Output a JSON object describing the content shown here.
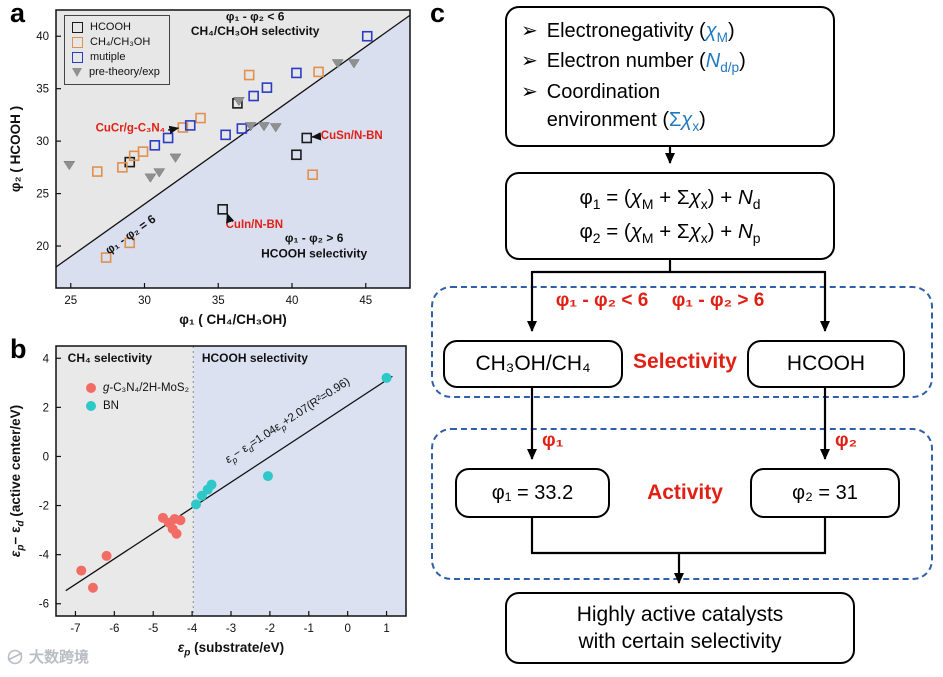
{
  "figure": {
    "panel_a": "a",
    "panel_b": "b",
    "panel_c": "c"
  },
  "watermark": {
    "text": "大数跨境"
  },
  "chart_data": [
    {
      "id": "a",
      "type": "scatter",
      "xlabel_parts": [
        [
          "t",
          "φ₁ ( CH₄/CH₃OH)"
        ]
      ],
      "ylabel_parts": [
        [
          "t",
          "φ₂ ( HCOOH )"
        ]
      ],
      "xlim": [
        24,
        48
      ],
      "ylim": [
        16,
        42.5
      ],
      "xticks": [
        25,
        30,
        35,
        40,
        45
      ],
      "yticks": [
        20,
        25,
        30,
        35,
        40
      ],
      "line": {
        "slope": 1,
        "intercept": -6,
        "x1": 24,
        "x2": 48
      },
      "regions": {
        "above": "#e7e7e7",
        "below": "#dadff0"
      },
      "series": [
        {
          "name": "HCOOH",
          "marker": "square",
          "color": "#1a1a1a",
          "points": [
            [
              29.0,
              28.0
            ],
            [
              35.3,
              23.5
            ],
            [
              36.3,
              33.6
            ],
            [
              40.3,
              28.7
            ],
            [
              41.0,
              30.3
            ]
          ]
        },
        {
          "name": "CH₄/CH₃OH",
          "marker": "square",
          "color": "#e0914f",
          "points": [
            [
              26.8,
              27.1
            ],
            [
              28.5,
              27.5
            ],
            [
              29.3,
              28.6
            ],
            [
              29.9,
              29.0
            ],
            [
              32.6,
              31.3
            ],
            [
              33.8,
              32.2
            ],
            [
              37.1,
              36.3
            ],
            [
              41.8,
              36.6
            ],
            [
              27.4,
              18.9
            ],
            [
              29.0,
              20.3
            ],
            [
              41.4,
              26.8
            ]
          ]
        },
        {
          "name": "mutiple",
          "marker": "square",
          "color": "#2b3bc8",
          "points": [
            [
              30.7,
              29.6
            ],
            [
              31.6,
              30.3
            ],
            [
              33.1,
              31.5
            ],
            [
              35.5,
              30.6
            ],
            [
              36.6,
              31.2
            ],
            [
              37.4,
              34.3
            ],
            [
              38.3,
              35.1
            ],
            [
              40.3,
              36.5
            ],
            [
              45.1,
              40.0
            ]
          ]
        },
        {
          "name": "pre-theory/exp",
          "marker": "triangle-down",
          "color": "#909090",
          "points": [
            [
              24.9,
              27.7
            ],
            [
              30.4,
              26.5
            ],
            [
              31.0,
              27.0
            ],
            [
              32.1,
              28.4
            ],
            [
              36.4,
              33.8
            ],
            [
              37.2,
              31.4
            ],
            [
              38.1,
              31.4
            ],
            [
              38.9,
              31.3
            ],
            [
              43.1,
              37.4
            ],
            [
              44.2,
              37.4
            ]
          ]
        }
      ],
      "annotations": [
        {
          "text": "φ₁ - φ₂ < 6",
          "x": 37.5,
          "y": 41.5,
          "anchor": "middle",
          "size": 12,
          "bold": true
        },
        {
          "text": "CH₄/CH₃OH selectivity",
          "x": 37.5,
          "y": 40.1,
          "anchor": "middle",
          "size": 12,
          "bold": true
        },
        {
          "text": "φ₁ - φ₂ > 6",
          "x": 41.5,
          "y": 20.4,
          "anchor": "middle",
          "size": 12,
          "bold": true
        },
        {
          "text": "HCOOH selectivity",
          "x": 41.5,
          "y": 18.9,
          "anchor": "middle",
          "size": 12,
          "bold": true
        },
        {
          "text": "φ₁ - φ₂ = 6",
          "x": 29.2,
          "y": 20.8,
          "anchor": "middle",
          "size": 12,
          "bold": true,
          "rotation": "line"
        },
        {
          "text": "CuCr/g-C₃N₄",
          "x": 31.4,
          "y": 30.9,
          "anchor": "end",
          "size": 11.5,
          "bold": true,
          "color": "#e02015"
        },
        {
          "text": "CuSn/N-BN",
          "x": 41.95,
          "y": 30.2,
          "anchor": "start",
          "size": 11.5,
          "bold": true,
          "color": "#e02015"
        },
        {
          "text": "CuIn/N-BN",
          "x": 35.5,
          "y": 21.7,
          "anchor": "start",
          "size": 11.5,
          "bold": true,
          "color": "#e02015"
        }
      ],
      "arrows": [
        {
          "x1": 31.6,
          "y1": 31.05,
          "x2": 32.3,
          "y2": 31.25
        },
        {
          "x1": 41.85,
          "y1": 30.45,
          "x2": 41.35,
          "y2": 30.4
        },
        {
          "x1": 35.8,
          "y1": 22.3,
          "x2": 35.6,
          "y2": 23.1
        }
      ]
    },
    {
      "id": "b",
      "type": "scatter",
      "xlabel_parts": [
        [
          "i",
          "ε"
        ],
        [
          "si",
          "p"
        ],
        [
          "t",
          " (substrate/eV)"
        ]
      ],
      "ylabel_parts": [
        [
          "i",
          "ε"
        ],
        [
          "si",
          "p"
        ],
        [
          "t",
          "− ε"
        ],
        [
          "si",
          "d"
        ],
        [
          "t",
          " (active center/eV)"
        ]
      ],
      "xlim": [
        -7.5,
        1.5
      ],
      "ylim": [
        -6.5,
        4.5
      ],
      "xticks": [
        -7,
        -6,
        -5,
        -4,
        -3,
        -2,
        -1,
        0,
        1
      ],
      "yticks": [
        -6,
        -4,
        -2,
        0,
        2,
        4
      ],
      "line": {
        "slope": 1.04,
        "intercept": 2.07,
        "x1": -7.25,
        "x2": 1.15
      },
      "divider_x": -3.97,
      "regions": {
        "left": "#e9e9e9",
        "right": "#dbe1f1"
      },
      "series": [
        {
          "name": "g-C₃N₄/2H-MoS₂",
          "legend_parts": [
            [
              "i",
              "g"
            ],
            [
              "t",
              "-C₃N₄/2H-MoS₂"
            ]
          ],
          "marker": "circle",
          "color": "#f26c65",
          "points": [
            [
              -6.85,
              -4.65
            ],
            [
              -6.55,
              -5.35
            ],
            [
              -6.2,
              -4.05
            ],
            [
              -4.75,
              -2.5
            ],
            [
              -4.6,
              -2.7
            ],
            [
              -4.5,
              -2.95
            ],
            [
              -4.45,
              -2.55
            ],
            [
              -4.4,
              -3.15
            ],
            [
              -4.3,
              -2.6
            ]
          ]
        },
        {
          "name": "BN",
          "legend_parts": [
            [
              "t",
              "BN"
            ]
          ],
          "marker": "circle",
          "color": "#2ec8c8",
          "points": [
            [
              -3.9,
              -1.95
            ],
            [
              -3.75,
              -1.6
            ],
            [
              -3.6,
              -1.35
            ],
            [
              -3.5,
              -1.15
            ],
            [
              -2.05,
              -0.8
            ],
            [
              1.0,
              3.2
            ]
          ]
        }
      ],
      "annotations": [
        {
          "text": "CH₄ selectivity",
          "x": -7.2,
          "y": 3.85,
          "anchor": "start",
          "size": 12,
          "bold": true
        },
        {
          "text": "HCOOH selectivity",
          "x": -3.75,
          "y": 3.85,
          "anchor": "start",
          "size": 12,
          "bold": true
        },
        {
          "parts": [
            [
              "i",
              "ε"
            ],
            [
              "si",
              "p"
            ],
            [
              "t",
              "− ε"
            ],
            [
              "si",
              "d"
            ],
            [
              "t",
              "=1.04ε"
            ],
            [
              "si",
              "p"
            ],
            [
              "t",
              "+2.07(R²=0.96)"
            ]
          ],
          "x": -1.5,
          "y": 1.35,
          "anchor": "middle",
          "size": 11.5,
          "rotation": "line"
        }
      ]
    }
  ],
  "flowchart": {
    "inputs": {
      "bullet": "➢",
      "items": [
        {
          "parts": [
            [
              "t",
              "Electronegativity ("
            ],
            [
              "ib",
              "χ"
            ],
            [
              "sb",
              "M"
            ],
            [
              "t",
              ")"
            ]
          ]
        },
        {
          "parts": [
            [
              "t",
              "Electron number ("
            ],
            [
              "ib",
              "N"
            ],
            [
              "sb",
              "d/p"
            ],
            [
              "t",
              ")"
            ]
          ]
        },
        {
          "parts": [
            [
              "t",
              "Coordination"
            ],
            [
              "n",
              ""
            ],
            [
              "t",
              "environment ("
            ],
            [
              "b",
              "Σ"
            ],
            [
              "ib",
              "χ"
            ],
            [
              "sb",
              "x"
            ],
            [
              "t",
              ")"
            ]
          ]
        }
      ]
    },
    "formula": {
      "line1": [
        [
          "t",
          "φ"
        ],
        [
          "s",
          "1"
        ],
        [
          "t",
          " = ("
        ],
        [
          "i",
          "χ"
        ],
        [
          "s",
          "M"
        ],
        [
          "t",
          " + Σ"
        ],
        [
          "i",
          "χ"
        ],
        [
          "s",
          "x"
        ],
        [
          "t",
          ") + "
        ],
        [
          "i",
          "N"
        ],
        [
          "s",
          "d"
        ]
      ],
      "line2": [
        [
          "t",
          "φ"
        ],
        [
          "s",
          "2"
        ],
        [
          "t",
          " = ("
        ],
        [
          "i",
          "χ"
        ],
        [
          "s",
          "M"
        ],
        [
          "t",
          " + Σ"
        ],
        [
          "i",
          "χ"
        ],
        [
          "s",
          "x"
        ],
        [
          "t",
          ") + "
        ],
        [
          "i",
          "N"
        ],
        [
          "s",
          "p"
        ]
      ]
    },
    "selectivity": {
      "cond_left": "φ₁ - φ₂ < 6",
      "cond_right": "φ₁ - φ₂ > 6",
      "box_left": "CH₃OH/CH₄",
      "box_right": "HCOOH",
      "label": "Selectivity"
    },
    "activity": {
      "arrow_left": "φ₁",
      "arrow_right": "φ₂",
      "box_left": "φ₁ = 33.2",
      "box_right": "φ₂ = 31",
      "label": "Activity"
    },
    "result": {
      "line1": "Highly active catalysts",
      "line2": "with certain selectivity"
    },
    "colors": {
      "red": "#e02015",
      "blue": "#2079c0",
      "dashed": "#2f5fa8"
    }
  }
}
